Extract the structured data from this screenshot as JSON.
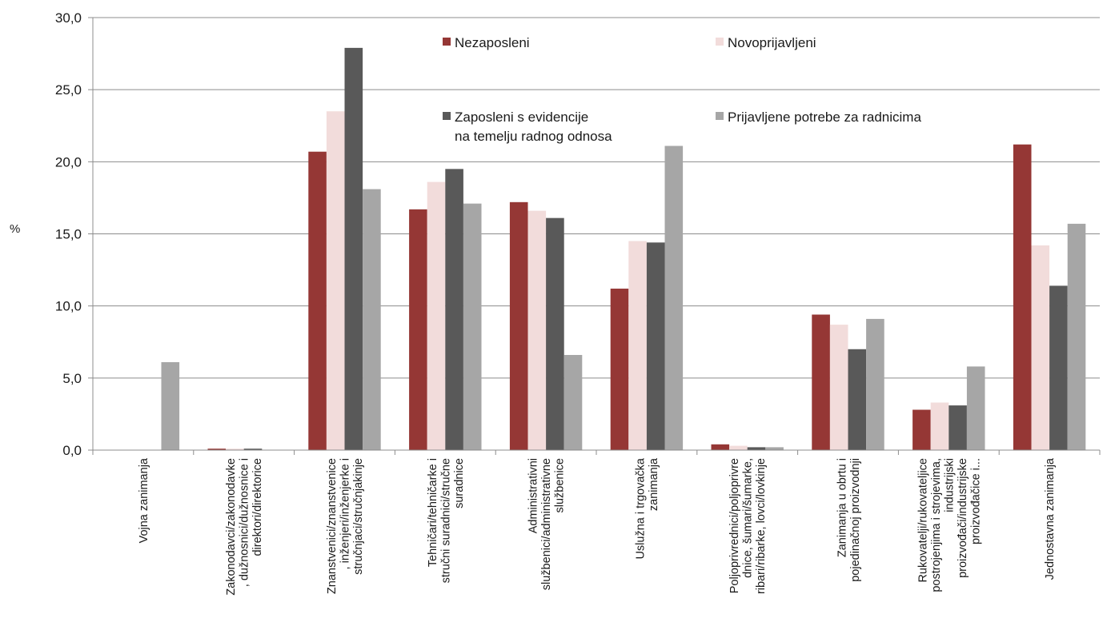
{
  "chart_data": {
    "type": "bar",
    "title": "",
    "xlabel": "",
    "ylabel": "%",
    "ylim": [
      0,
      30
    ],
    "yticks": [
      "0,0",
      "5,0",
      "10,0",
      "15,0",
      "20,0",
      "25,0",
      "30,0"
    ],
    "grid": true,
    "legend_position": "top-center",
    "categories": [
      {
        "lines": [
          "Vojna zanimanja"
        ]
      },
      {
        "lines": [
          "Zakonodavci/zakonodavke",
          ", dužnosnici/dužnosnice i",
          "direktori/direktorice"
        ]
      },
      {
        "lines": [
          "Znanstvenici/znanstvenice",
          ", inženjeri/inženjerke i",
          "stručnjaci/stručnjakinje"
        ]
      },
      {
        "lines": [
          "Tehničari/tehničarke i",
          "stručni suradnici/stručne",
          "suradnice"
        ]
      },
      {
        "lines": [
          "Administrativni",
          "službenici/administrativne",
          "službenice"
        ]
      },
      {
        "lines": [
          "Uslužna i trgovačka",
          "zanimanja"
        ]
      },
      {
        "lines": [
          "Poljoprivrednici/poljoprivre",
          "dnice, šumari/šumarke,",
          "ribari/ribarke, lovci/lovkinje"
        ]
      },
      {
        "lines": [
          "Zanimanja u obrtu i",
          "pojedinačnoj proizvodnji"
        ]
      },
      {
        "lines": [
          "Rukovatelji/rukovateljice",
          "postrojenjima i strojevima,",
          "industrijski",
          "proizvođači/industrijske",
          "proizvođačice i..."
        ]
      },
      {
        "lines": [
          "Jednostavna zanimanja"
        ]
      }
    ],
    "series": [
      {
        "name": "Nezaposleni",
        "color": "#953735",
        "values": [
          0.0,
          0.1,
          20.7,
          16.7,
          17.2,
          11.2,
          0.4,
          9.4,
          2.8,
          21.2
        ]
      },
      {
        "name": "Novoprijavljeni",
        "color": "#f2dcdb",
        "values": [
          0.0,
          0.1,
          23.5,
          18.6,
          16.6,
          14.5,
          0.3,
          8.7,
          3.3,
          14.2
        ]
      },
      {
        "name_lines": [
          "Zaposleni s evidencije",
          "na temelju radnog odnosa"
        ],
        "color": "#595959",
        "values": [
          0.0,
          0.1,
          27.9,
          19.5,
          16.1,
          14.4,
          0.2,
          7.0,
          3.1,
          11.4
        ]
      },
      {
        "name": "Prijavljene potrebe za radnicima",
        "color": "#a6a6a6",
        "values": [
          6.1,
          0.0,
          18.1,
          17.1,
          6.6,
          21.1,
          0.2,
          9.1,
          5.8,
          15.7
        ]
      }
    ]
  }
}
